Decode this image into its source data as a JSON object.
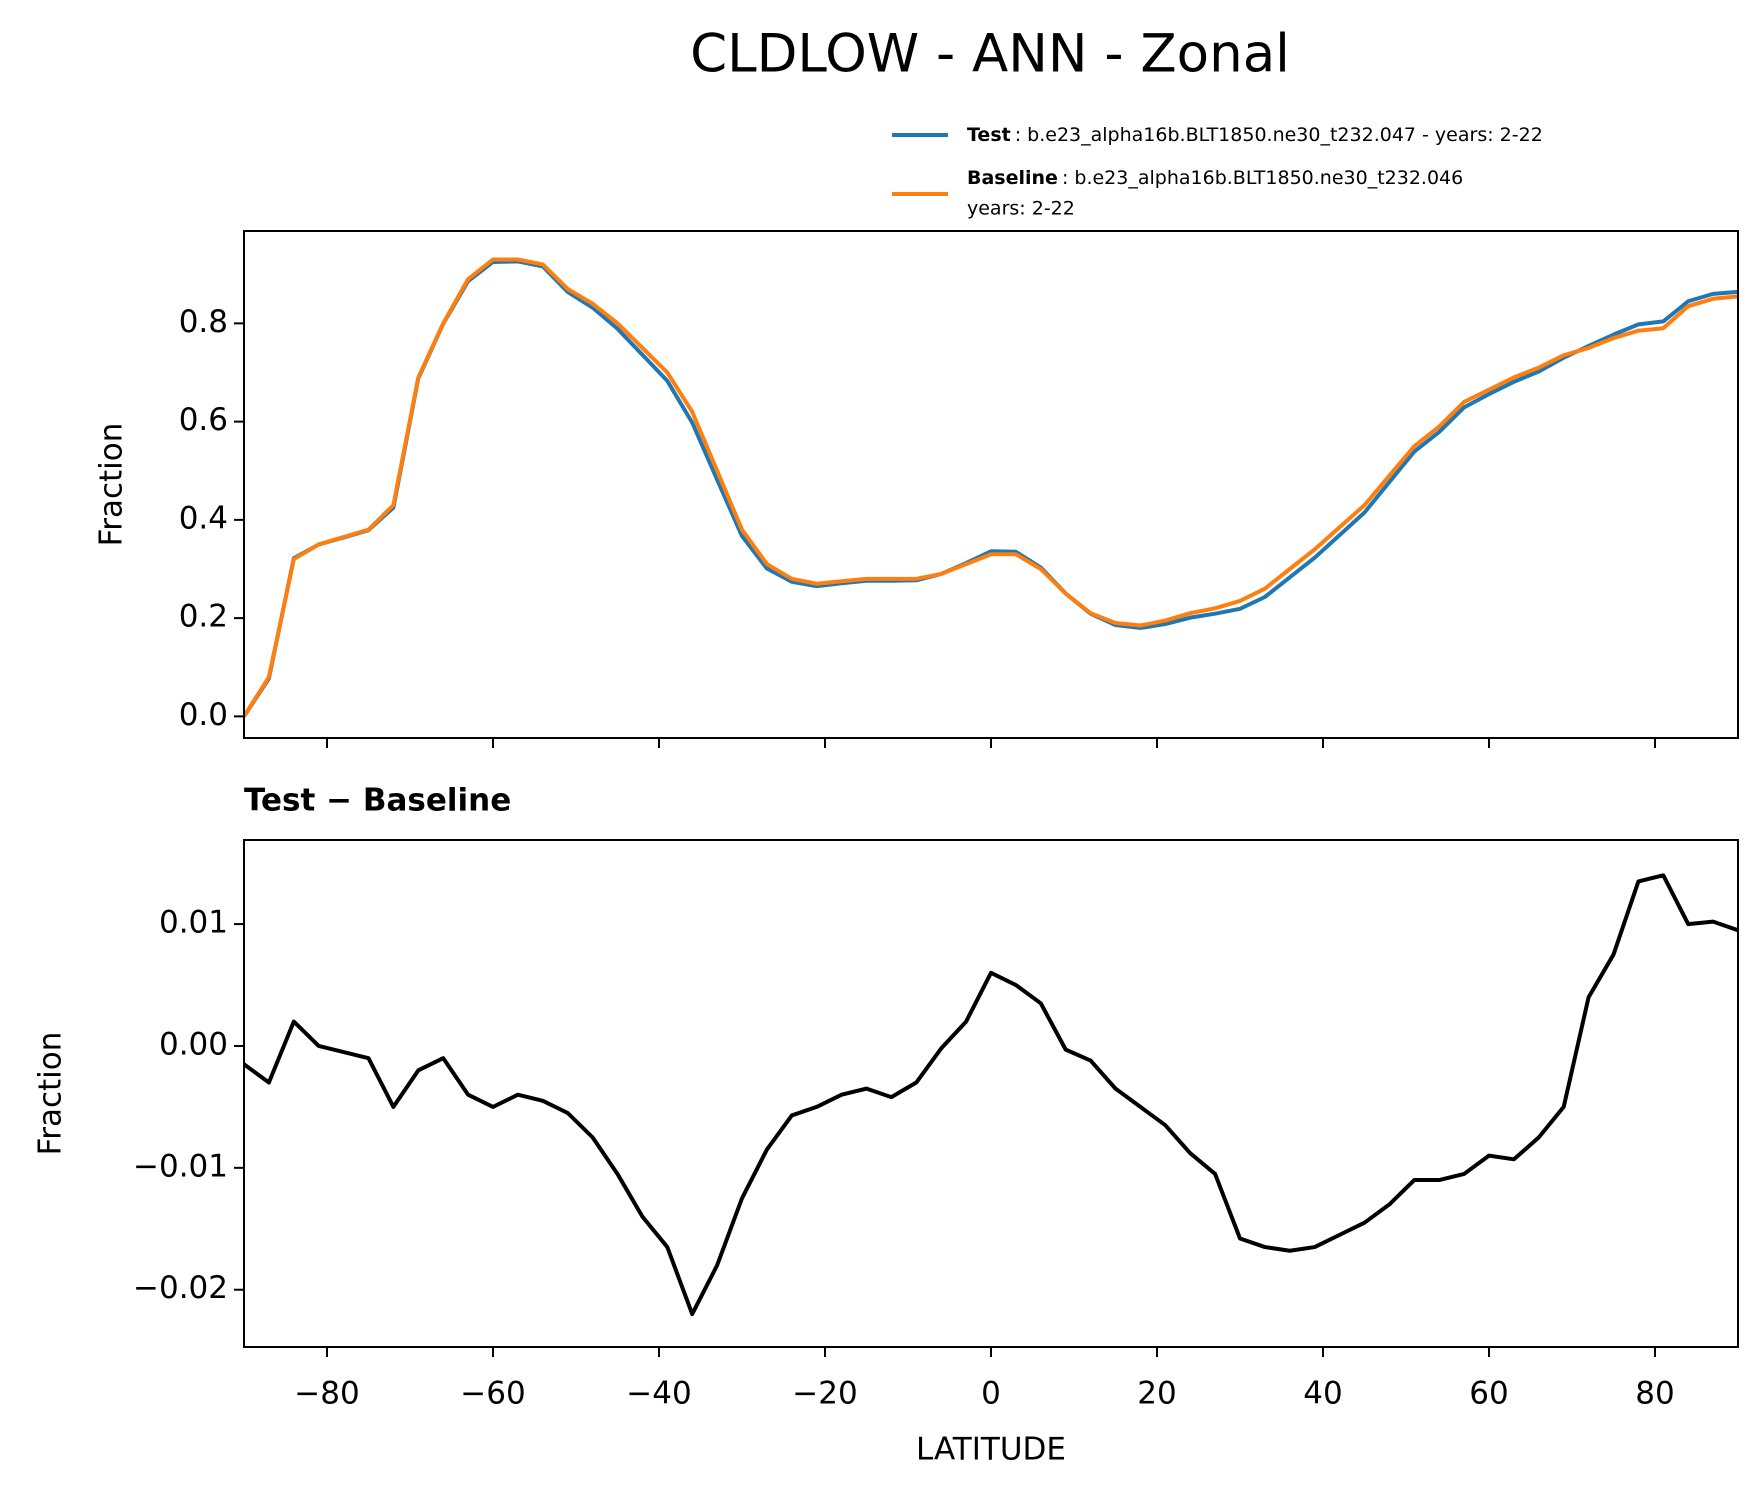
{
  "chart_data": [
    {
      "type": "line",
      "title": "CLDLOW - ANN - Zonal",
      "ylabel": "Fraction",
      "x": [
        -90,
        -87,
        -84,
        -81,
        -78,
        -75,
        -72,
        -69,
        -66,
        -63,
        -60,
        -57,
        -54,
        -51,
        -48,
        -45,
        -42,
        -39,
        -36,
        -33,
        -30,
        -27,
        -24,
        -21,
        -18,
        -15,
        -12,
        -9,
        -6,
        -3,
        0,
        3,
        6,
        9,
        12,
        15,
        18,
        21,
        24,
        27,
        30,
        33,
        36,
        39,
        42,
        45,
        48,
        51,
        54,
        57,
        60,
        63,
        66,
        69,
        72,
        75,
        78,
        81,
        84,
        87,
        90
      ],
      "series": [
        {
          "name": "Test",
          "legend_detail": [
            ": b.e23_alpha16b.BLT1850.ne30_t232.047 - years: 2-22"
          ],
          "color": "#1f77b4",
          "values": [
            0.0,
            0.077,
            0.322,
            0.35,
            0.364,
            0.379,
            0.425,
            0.688,
            0.799,
            0.886,
            0.925,
            0.926,
            0.916,
            0.864,
            0.832,
            0.789,
            0.736,
            0.683,
            0.598,
            0.482,
            0.367,
            0.301,
            0.274,
            0.265,
            0.271,
            0.276,
            0.276,
            0.277,
            0.29,
            0.312,
            0.336,
            0.335,
            0.303,
            0.25,
            0.209,
            0.186,
            0.18,
            0.188,
            0.201,
            0.209,
            0.219,
            0.243,
            0.283,
            0.323,
            0.369,
            0.415,
            0.477,
            0.539,
            0.579,
            0.629,
            0.656,
            0.681,
            0.702,
            0.73,
            0.754,
            0.777,
            0.798,
            0.804,
            0.845,
            0.86,
            0.864
          ]
        },
        {
          "name": "Baseline",
          "legend_detail": [
            ": b.e23_alpha16b.BLT1850.ne30_t232.046",
            "years: 2-22"
          ],
          "color": "#ff7f0e",
          "values": [
            0.0,
            0.08,
            0.32,
            0.35,
            0.365,
            0.38,
            0.43,
            0.69,
            0.8,
            0.89,
            0.93,
            0.93,
            0.92,
            0.87,
            0.84,
            0.8,
            0.75,
            0.7,
            0.62,
            0.5,
            0.38,
            0.31,
            0.28,
            0.27,
            0.275,
            0.28,
            0.28,
            0.28,
            0.29,
            0.31,
            0.33,
            0.33,
            0.3,
            0.25,
            0.21,
            0.19,
            0.185,
            0.195,
            0.21,
            0.22,
            0.235,
            0.26,
            0.3,
            0.34,
            0.385,
            0.43,
            0.49,
            0.55,
            0.59,
            0.64,
            0.665,
            0.69,
            0.71,
            0.735,
            0.75,
            0.77,
            0.785,
            0.79,
            0.835,
            0.85,
            0.855
          ]
        }
      ],
      "xlim": [
        -90,
        90
      ],
      "xticks": [
        -80,
        -60,
        -40,
        -20,
        0,
        20,
        40,
        60,
        80
      ],
      "ylim": [
        -0.044,
        0.988
      ],
      "yticks": [
        {
          "value": 0,
          "label": "0.0"
        },
        0.2,
        0.4,
        0.6,
        0.8
      ]
    },
    {
      "type": "line",
      "title": "Test − Baseline",
      "ylabel": "Fraction",
      "xlabel": "LATITUDE",
      "x": [
        -90,
        -87,
        -84,
        -81,
        -78,
        -75,
        -72,
        -69,
        -66,
        -63,
        -60,
        -57,
        -54,
        -51,
        -48,
        -45,
        -42,
        -39,
        -36,
        -33,
        -30,
        -27,
        -24,
        -21,
        -18,
        -15,
        -12,
        -9,
        -6,
        -3,
        0,
        3,
        6,
        9,
        12,
        15,
        18,
        21,
        24,
        27,
        30,
        33,
        36,
        39,
        42,
        45,
        48,
        51,
        54,
        57,
        60,
        63,
        66,
        69,
        72,
        75,
        78,
        81,
        84,
        87,
        90
      ],
      "series": [
        {
          "color": "#000000",
          "values": [
            -0.0015,
            -0.003,
            0.002,
            0.0,
            -0.0005,
            -0.001,
            -0.005,
            -0.002,
            -0.001,
            -0.004,
            -0.005,
            -0.004,
            -0.0045,
            -0.0055,
            -0.0075,
            -0.0105,
            -0.014,
            -0.0165,
            -0.022,
            -0.018,
            -0.0125,
            -0.0085,
            -0.0057,
            -0.005,
            -0.004,
            -0.0035,
            -0.0042,
            -0.003,
            -0.0002,
            0.002,
            0.006,
            0.005,
            0.0035,
            -0.0003,
            -0.0012,
            -0.0035,
            -0.005,
            -0.0065,
            -0.0088,
            -0.0105,
            -0.0158,
            -0.0165,
            -0.0168,
            -0.0165,
            -0.0155,
            -0.0145,
            -0.013,
            -0.011,
            -0.011,
            -0.0105,
            -0.009,
            -0.0093,
            -0.0075,
            -0.005,
            0.004,
            0.0075,
            0.0135,
            0.014,
            0.01,
            0.0102,
            0.0095
          ]
        }
      ],
      "xlim": [
        -90,
        90
      ],
      "xticks": [
        {
          "value": -80,
          "label": "−80"
        },
        {
          "value": -60,
          "label": "−60"
        },
        {
          "value": -40,
          "label": "−40"
        },
        {
          "value": -20,
          "label": "−20"
        },
        0,
        20,
        40,
        60,
        80
      ],
      "ylim": [
        -0.0247,
        0.0169
      ],
      "yticks": [
        {
          "value": -0.02,
          "label": "−0.02"
        },
        {
          "value": -0.01,
          "label": "−0.01"
        },
        {
          "value": 0,
          "label": "0.00"
        },
        0.01
      ]
    }
  ]
}
